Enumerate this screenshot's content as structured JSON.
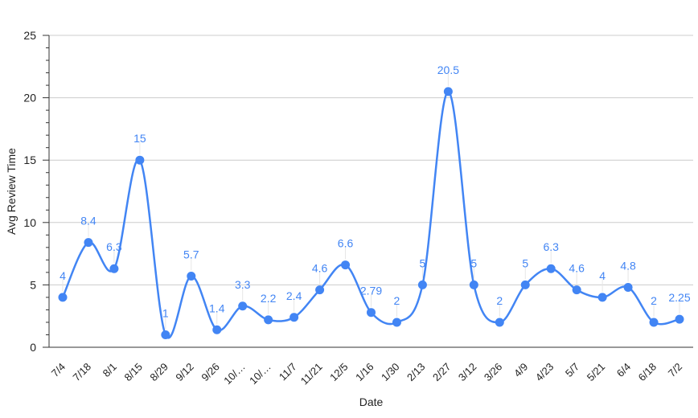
{
  "chart_data": {
    "type": "line",
    "smooth": true,
    "title": "",
    "xlabel": "Date",
    "ylabel": "Avg Review Time",
    "ylim": [
      0,
      25
    ],
    "yticks": [
      0,
      5,
      10,
      15,
      20,
      25
    ],
    "grid": true,
    "legend": "none",
    "categories": [
      "7/4",
      "7/18",
      "8/1",
      "8/15",
      "8/29",
      "9/12",
      "9/26",
      "10/…",
      "10/…",
      "11/7",
      "11/21",
      "12/5",
      "1/16",
      "1/30",
      "2/13",
      "2/27",
      "3/12",
      "3/26",
      "4/9",
      "4/23",
      "5/7",
      "5/21",
      "6/4",
      "6/18",
      "7/2"
    ],
    "series": [
      {
        "values": [
          4,
          8.4,
          6.3,
          15,
          1,
          5.7,
          1.4,
          3.3,
          2.2,
          2.4,
          4.6,
          6.6,
          2.79,
          2,
          5,
          20.5,
          5,
          2,
          5,
          6.3,
          4.6,
          4,
          4.8,
          2,
          2.25
        ],
        "labels": [
          "4",
          "8.4",
          "6.3",
          "15",
          "1",
          "5.7",
          "1.4",
          "3.3",
          "2.2",
          "2.4",
          "4.6",
          "6.6",
          "2.79",
          "2",
          "5",
          "20.5",
          "5",
          "2",
          "5",
          "6.3",
          "4.6",
          "4",
          "4.8",
          "2",
          "2.25"
        ]
      }
    ],
    "colors": {
      "line": "#4285f4",
      "label": "#4285f4",
      "grid": "#cccccc",
      "axis": "#333333",
      "text": "#222222"
    }
  }
}
